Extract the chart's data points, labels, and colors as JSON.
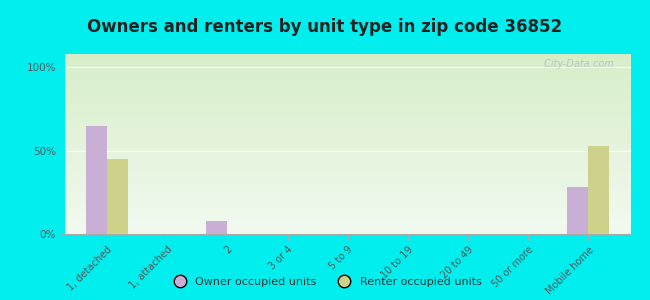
{
  "title": "Owners and renters by unit type in zip code 36852",
  "categories": [
    "1, detached",
    "1, attached",
    "2",
    "3 or 4",
    "5 to 9",
    "10 to 19",
    "20 to 49",
    "50 or more",
    "Mobile home"
  ],
  "owner_values": [
    65,
    0,
    8,
    0,
    0,
    0,
    0,
    0,
    28
  ],
  "renter_values": [
    45,
    0,
    0,
    0,
    0,
    0,
    0,
    0,
    53
  ],
  "owner_color": "#c9aed6",
  "renter_color": "#cdd18a",
  "outer_background": "#00eeee",
  "gradient_top": "#d6eec8",
  "gradient_bottom": "#f2faf0",
  "yticks": [
    0,
    50,
    100
  ],
  "ylabels": [
    "0%",
    "50%",
    "100%"
  ],
  "ylim": [
    0,
    108
  ],
  "bar_width": 0.35,
  "title_fontsize": 12,
  "watermark": " City-Data.com"
}
